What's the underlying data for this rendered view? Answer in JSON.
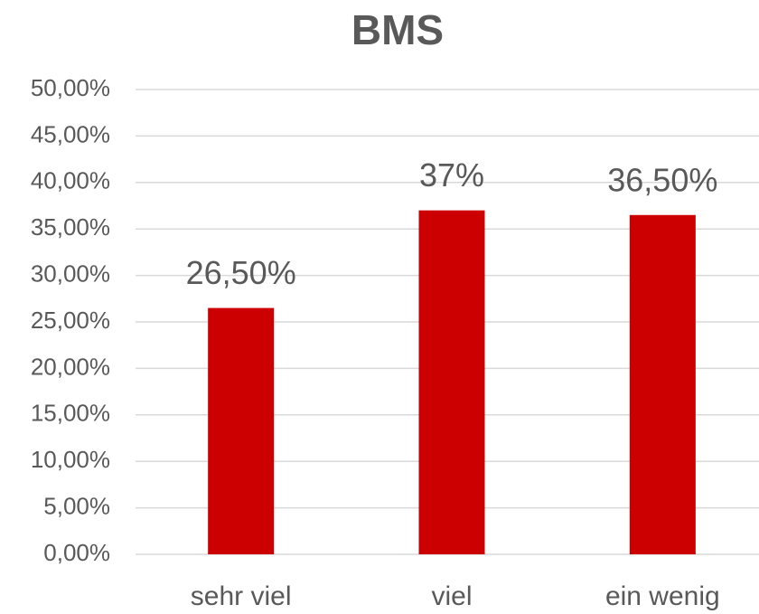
{
  "chart_data": {
    "type": "bar",
    "title": "BMS",
    "categories": [
      "sehr viel",
      "viel",
      "ein wenig"
    ],
    "values": [
      26.5,
      37,
      36.5
    ],
    "value_labels": [
      "26,50%",
      "37%",
      "36,50%"
    ],
    "color": "#cc0000",
    "ylim": [
      0,
      50
    ],
    "yticks": [
      {
        "value": 0,
        "label": "0,00%"
      },
      {
        "value": 5,
        "label": "5,00%"
      },
      {
        "value": 10,
        "label": "10,00%"
      },
      {
        "value": 15,
        "label": "15,00%"
      },
      {
        "value": 20,
        "label": "20,00%"
      },
      {
        "value": 25,
        "label": "25,00%"
      },
      {
        "value": 30,
        "label": "30,00%"
      },
      {
        "value": 35,
        "label": "35,00%"
      },
      {
        "value": 40,
        "label": "40,00%"
      },
      {
        "value": 45,
        "label": "45,00%"
      },
      {
        "value": 50,
        "label": "50,00%"
      }
    ],
    "grid": true
  }
}
